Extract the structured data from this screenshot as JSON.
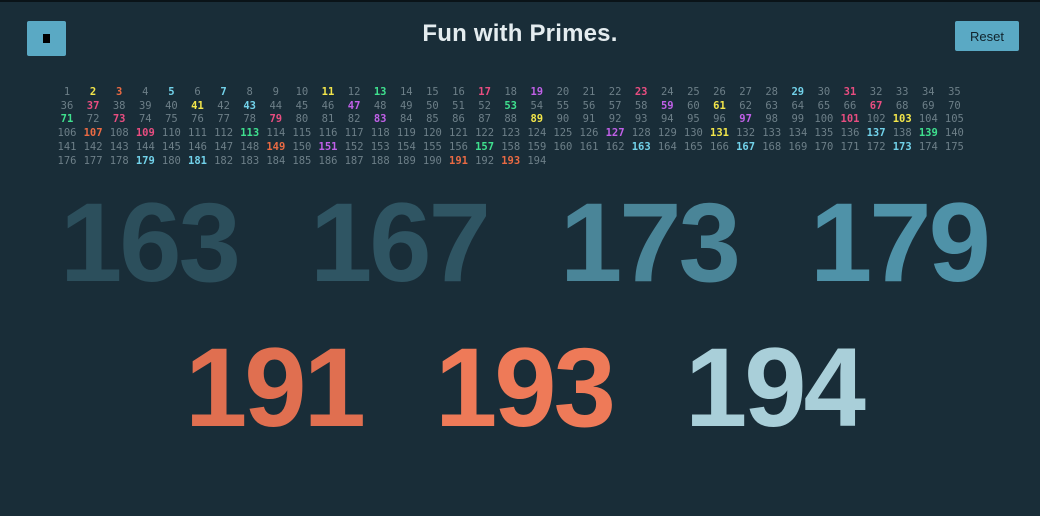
{
  "header": {
    "title": "Fun with Primes.",
    "reset_label": "Reset",
    "menu_icon": "stop-square-icon"
  },
  "colors": {
    "background": "#192d38",
    "button": "#5aa9c4",
    "composite": "#6d7f88",
    "yellow": "#f3e64a",
    "orange": "#ea6a43",
    "blue": "#72d2ea",
    "green": "#3fe08e",
    "pink": "#e84d80",
    "purple": "#c060e8"
  },
  "grid": {
    "max": 194,
    "columns": 35,
    "primes": {
      "2": "yellow",
      "3": "orange",
      "5": "blue",
      "7": "blue",
      "11": "yellow",
      "13": "green",
      "17": "pink",
      "19": "purple",
      "23": "pink",
      "29": "blue",
      "31": "pink",
      "37": "pink",
      "41": "yellow",
      "43": "blue",
      "47": "purple",
      "53": "green",
      "59": "purple",
      "61": "yellow",
      "67": "pink",
      "71": "green",
      "73": "pink",
      "79": "pink",
      "83": "purple",
      "89": "yellow",
      "97": "purple",
      "101": "pink",
      "103": "yellow",
      "107": "orange",
      "109": "pink",
      "113": "green",
      "127": "purple",
      "131": "yellow",
      "137": "blue",
      "139": "green",
      "149": "orange",
      "151": "purple",
      "157": "green",
      "163": "blue",
      "167": "blue",
      "173": "blue",
      "179": "blue",
      "181": "blue",
      "191": "orange",
      "193": "orange"
    }
  },
  "floating": [
    {
      "text": "163",
      "color": "#2c4f5c"
    },
    {
      "text": "167",
      "color": "#2f5563"
    },
    {
      "text": "173",
      "color": "#4a8598"
    },
    {
      "text": "179",
      "color": "#4f92a8"
    },
    {
      "text": "191",
      "color": "#e06f50"
    },
    {
      "text": "193",
      "color": "#ee7a58"
    },
    {
      "text": "194",
      "color": "#a9cfd9"
    }
  ]
}
